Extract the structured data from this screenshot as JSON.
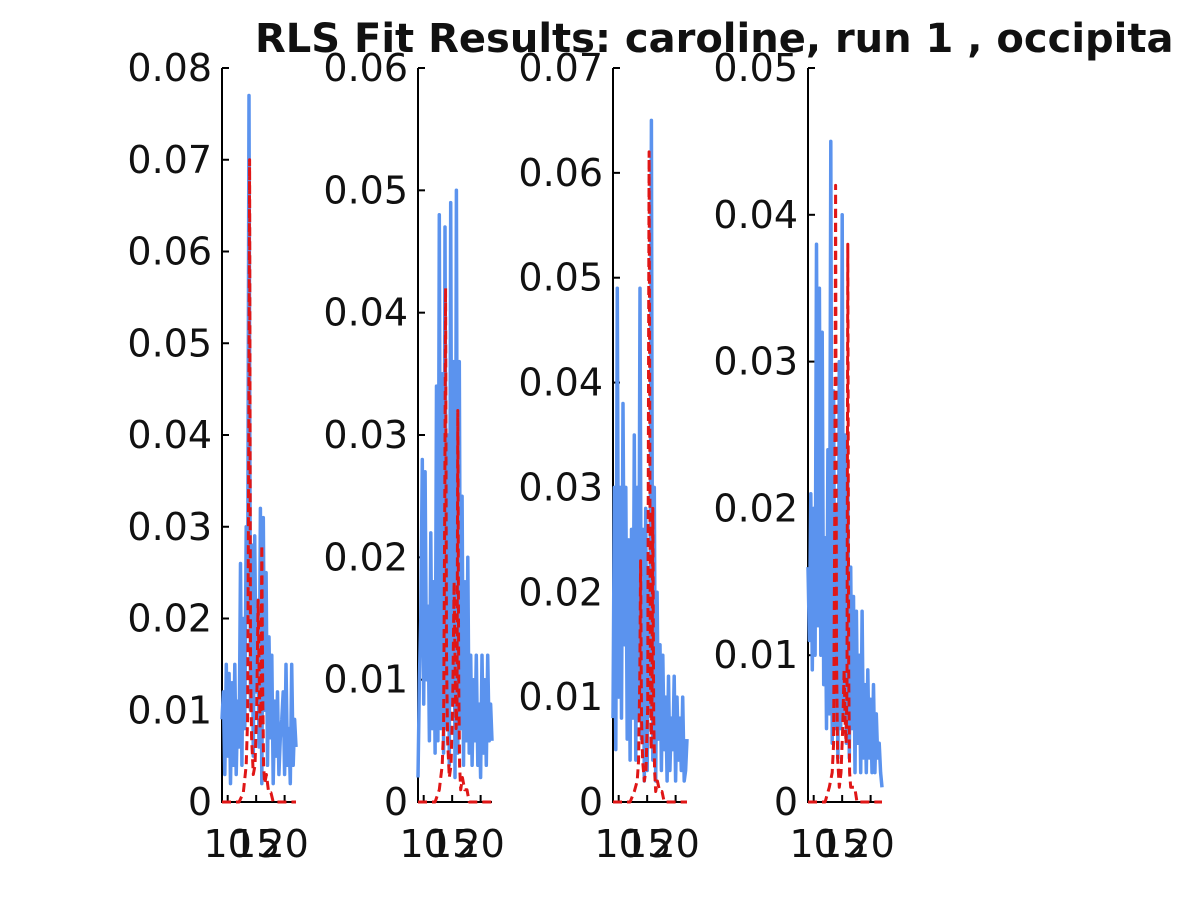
{
  "figure": {
    "title": "RLS Fit Results: caroline, run 1 , occipita"
  },
  "colors": {
    "data_series": "#5b93ee",
    "fit_series": "#e01616",
    "axes": "#000000",
    "background": "#ffffff"
  },
  "chart_data": [
    {
      "type": "line",
      "title": "",
      "xlabel": "",
      "ylabel": "",
      "xlim": [
        9,
        22
      ],
      "ylim": [
        0,
        0.08
      ],
      "x_ticks": [
        "10",
        "15",
        "20"
      ],
      "y_ticks": [
        "0",
        "0.01",
        "0.02",
        "0.03",
        "0.04",
        "0.05",
        "0.06",
        "0.07",
        "0.08"
      ],
      "grid": false,
      "series": [
        {
          "style": "solid-blue",
          "x": [
            9.0,
            9.25,
            9.5,
            9.75,
            10.0,
            10.25,
            10.5,
            10.75,
            11.0,
            11.25,
            11.5,
            11.75,
            12.0,
            12.25,
            12.5,
            12.75,
            13.0,
            13.25,
            13.5,
            13.75,
            14.0,
            14.25,
            14.5,
            14.75,
            15.0,
            15.25,
            15.5,
            15.75,
            16.0,
            16.25,
            16.5,
            16.75,
            17.0,
            17.25,
            17.5,
            17.75,
            18.0,
            18.25,
            18.5,
            18.75,
            19.0,
            19.25,
            19.5,
            19.75,
            20.0,
            20.25,
            20.5,
            20.75,
            21.0,
            21.25,
            21.5,
            21.75,
            22.0
          ],
          "values": [
            0.009,
            0.012,
            0.003,
            0.015,
            0.005,
            0.014,
            0.002,
            0.013,
            0.004,
            0.015,
            0.003,
            0.011,
            0.006,
            0.026,
            0.004,
            0.02,
            0.008,
            0.03,
            0.02,
            0.077,
            0.01,
            0.028,
            0.005,
            0.029,
            0.012,
            0.022,
            0.006,
            0.032,
            0.002,
            0.031,
            0.01,
            0.025,
            0.004,
            0.018,
            0.007,
            0.016,
            0.002,
            0.011,
            0.005,
            0.012,
            0.003,
            0.007,
            0.009,
            0.012,
            0.003,
            0.015,
            0.004,
            0.008,
            0.002,
            0.015,
            0.004,
            0.009,
            0.006
          ]
        },
        {
          "style": "dashed-red",
          "x": [
            9.0,
            11.0,
            12.0,
            12.75,
            13.25,
            13.5,
            13.7,
            13.85,
            14.0,
            14.2,
            14.5,
            14.8,
            15.1,
            15.35,
            15.55,
            15.7,
            15.85,
            16.0,
            16.15,
            16.3,
            16.5,
            16.8,
            17.2,
            17.6,
            18.0,
            19.0,
            22.0
          ],
          "values": [
            0.0,
            0.0,
            0.0,
            0.001,
            0.004,
            0.009,
            0.04,
            0.07,
            0.015,
            0.007,
            0.003,
            0.004,
            0.01,
            0.022,
            0.013,
            0.008,
            0.01,
            0.028,
            0.012,
            0.004,
            0.002,
            0.003,
            0.001,
            0.001,
            0.0,
            0.0,
            0.0
          ]
        }
      ]
    },
    {
      "type": "line",
      "title": "",
      "xlabel": "",
      "ylabel": "",
      "xlim": [
        9,
        22
      ],
      "ylim": [
        0,
        0.06
      ],
      "x_ticks": [
        "10",
        "15",
        "20"
      ],
      "y_ticks": [
        "0",
        "0.01",
        "0.02",
        "0.03",
        "0.04",
        "0.05",
        "0.06"
      ],
      "grid": false,
      "series": [
        {
          "style": "solid-blue",
          "x": [
            9.0,
            9.25,
            9.5,
            9.75,
            10.0,
            10.25,
            10.5,
            10.75,
            11.0,
            11.25,
            11.5,
            11.75,
            12.0,
            12.25,
            12.5,
            12.75,
            13.0,
            13.25,
            13.5,
            13.75,
            14.0,
            14.25,
            14.5,
            14.75,
            15.0,
            15.25,
            15.5,
            15.75,
            16.0,
            16.25,
            16.5,
            16.75,
            17.0,
            17.25,
            17.5,
            17.75,
            18.0,
            18.25,
            18.5,
            18.75,
            19.0,
            19.25,
            19.5,
            19.75,
            20.0,
            20.25,
            20.5,
            20.75,
            21.0,
            21.25,
            21.5,
            21.75,
            22.0
          ],
          "values": [
            0.002,
            0.01,
            0.015,
            0.028,
            0.008,
            0.027,
            0.01,
            0.016,
            0.005,
            0.022,
            0.006,
            0.018,
            0.004,
            0.034,
            0.005,
            0.048,
            0.006,
            0.035,
            0.004,
            0.047,
            0.006,
            0.03,
            0.003,
            0.049,
            0.008,
            0.036,
            0.002,
            0.05,
            0.004,
            0.036,
            0.006,
            0.025,
            0.003,
            0.018,
            0.005,
            0.02,
            0.004,
            0.012,
            0.003,
            0.01,
            0.005,
            0.012,
            0.003,
            0.008,
            0.002,
            0.012,
            0.004,
            0.01,
            0.003,
            0.012,
            0.005,
            0.008,
            0.005
          ]
        },
        {
          "style": "dashed-red",
          "x": [
            9.0,
            11.0,
            12.0,
            12.75,
            13.25,
            13.5,
            13.7,
            13.85,
            14.0,
            14.2,
            14.5,
            14.8,
            15.1,
            15.35,
            15.55,
            15.7,
            15.85,
            16.0,
            16.15,
            16.3,
            16.5,
            16.8,
            17.2,
            17.6,
            18.0,
            19.0,
            22.0
          ],
          "values": [
            0.0,
            0.0,
            0.0,
            0.001,
            0.003,
            0.006,
            0.025,
            0.042,
            0.012,
            0.005,
            0.002,
            0.003,
            0.008,
            0.018,
            0.01,
            0.006,
            0.008,
            0.032,
            0.01,
            0.003,
            0.001,
            0.002,
            0.001,
            0.001,
            0.0,
            0.0,
            0.0
          ]
        }
      ]
    },
    {
      "type": "line",
      "title": "",
      "xlabel": "",
      "ylabel": "",
      "xlim": [
        9,
        22
      ],
      "ylim": [
        0,
        0.07
      ],
      "x_ticks": [
        "10",
        "15",
        "20"
      ],
      "y_ticks": [
        "0",
        "0.01",
        "0.02",
        "0.03",
        "0.04",
        "0.05",
        "0.06",
        "0.07"
      ],
      "grid": false,
      "series": [
        {
          "style": "solid-blue",
          "x": [
            9.0,
            9.25,
            9.5,
            9.75,
            10.0,
            10.25,
            10.5,
            10.75,
            11.0,
            11.25,
            11.5,
            11.75,
            12.0,
            12.25,
            12.5,
            12.75,
            13.0,
            13.25,
            13.5,
            13.75,
            14.0,
            14.25,
            14.5,
            14.75,
            15.0,
            15.25,
            15.5,
            15.75,
            16.0,
            16.25,
            16.5,
            16.75,
            17.0,
            17.25,
            17.5,
            17.75,
            18.0,
            18.25,
            18.5,
            18.75,
            19.0,
            19.25,
            19.5,
            19.75,
            20.0,
            20.25,
            20.5,
            20.75,
            21.0,
            21.25,
            21.5,
            21.75,
            22.0
          ],
          "values": [
            0.008,
            0.03,
            0.005,
            0.049,
            0.01,
            0.03,
            0.008,
            0.038,
            0.015,
            0.03,
            0.006,
            0.025,
            0.004,
            0.026,
            0.008,
            0.035,
            0.004,
            0.03,
            0.008,
            0.049,
            0.006,
            0.026,
            0.002,
            0.028,
            0.003,
            0.022,
            0.009,
            0.065,
            0.004,
            0.03,
            0.002,
            0.02,
            0.006,
            0.015,
            0.003,
            0.014,
            0.005,
            0.01,
            0.002,
            0.012,
            0.003,
            0.008,
            0.005,
            0.012,
            0.002,
            0.01,
            0.004,
            0.008,
            0.003,
            0.01,
            0.002,
            0.003,
            0.006
          ]
        },
        {
          "style": "dashed-red",
          "x": [
            9.0,
            11.0,
            12.0,
            12.75,
            13.25,
            13.5,
            13.7,
            13.85,
            14.0,
            14.2,
            14.5,
            14.8,
            15.1,
            15.35,
            15.55,
            15.7,
            15.85,
            16.0,
            16.15,
            16.3,
            16.5,
            16.8,
            17.2,
            17.6,
            18.0,
            19.0,
            22.0
          ],
          "values": [
            0.0,
            0.0,
            0.0,
            0.001,
            0.002,
            0.004,
            0.012,
            0.023,
            0.008,
            0.004,
            0.002,
            0.003,
            0.009,
            0.062,
            0.015,
            0.005,
            0.01,
            0.028,
            0.008,
            0.003,
            0.001,
            0.002,
            0.001,
            0.001,
            0.0,
            0.0,
            0.0
          ]
        }
      ]
    },
    {
      "type": "line",
      "title": "",
      "xlabel": "",
      "ylabel": "",
      "xlim": [
        9,
        22
      ],
      "ylim": [
        0,
        0.05
      ],
      "x_ticks": [
        "10",
        "15",
        "20"
      ],
      "y_ticks": [
        "0",
        "0.01",
        "0.02",
        "0.03",
        "0.04",
        "0.05"
      ],
      "grid": false,
      "series": [
        {
          "style": "solid-blue",
          "x": [
            9.0,
            9.25,
            9.5,
            9.75,
            10.0,
            10.25,
            10.5,
            10.75,
            11.0,
            11.25,
            11.5,
            11.75,
            12.0,
            12.25,
            12.5,
            12.75,
            13.0,
            13.25,
            13.5,
            13.75,
            14.0,
            14.25,
            14.5,
            14.75,
            15.0,
            15.25,
            15.5,
            15.75,
            16.0,
            16.25,
            16.5,
            16.75,
            17.0,
            17.25,
            17.5,
            17.75,
            18.0,
            18.25,
            18.5,
            18.75,
            19.0,
            19.25,
            19.5,
            19.75,
            20.0,
            20.25,
            20.5,
            20.75,
            21.0,
            21.25,
            21.5,
            21.75,
            22.0
          ],
          "values": [
            0.016,
            0.011,
            0.021,
            0.009,
            0.02,
            0.01,
            0.038,
            0.012,
            0.035,
            0.01,
            0.032,
            0.008,
            0.018,
            0.005,
            0.024,
            0.006,
            0.045,
            0.004,
            0.028,
            0.005,
            0.02,
            0.003,
            0.03,
            0.005,
            0.04,
            0.006,
            0.025,
            0.004,
            0.022,
            0.003,
            0.016,
            0.005,
            0.014,
            0.002,
            0.013,
            0.004,
            0.01,
            0.002,
            0.013,
            0.003,
            0.008,
            0.002,
            0.009,
            0.003,
            0.007,
            0.002,
            0.008,
            0.002,
            0.006,
            0.003,
            0.004,
            0.002,
            0.001
          ]
        },
        {
          "style": "dashed-red",
          "x": [
            9.0,
            11.0,
            12.0,
            12.75,
            13.25,
            13.5,
            13.7,
            13.85,
            14.0,
            14.2,
            14.5,
            14.8,
            15.1,
            15.35,
            15.55,
            15.7,
            15.85,
            16.0,
            16.15,
            16.3,
            16.5,
            16.8,
            17.2,
            17.6,
            18.0,
            19.0,
            22.0
          ],
          "values": [
            0.0,
            0.0,
            0.0,
            0.001,
            0.002,
            0.004,
            0.02,
            0.042,
            0.01,
            0.003,
            0.001,
            0.002,
            0.005,
            0.009,
            0.005,
            0.004,
            0.008,
            0.038,
            0.009,
            0.002,
            0.001,
            0.001,
            0.001,
            0.0,
            0.0,
            0.0,
            0.0
          ]
        }
      ]
    }
  ]
}
